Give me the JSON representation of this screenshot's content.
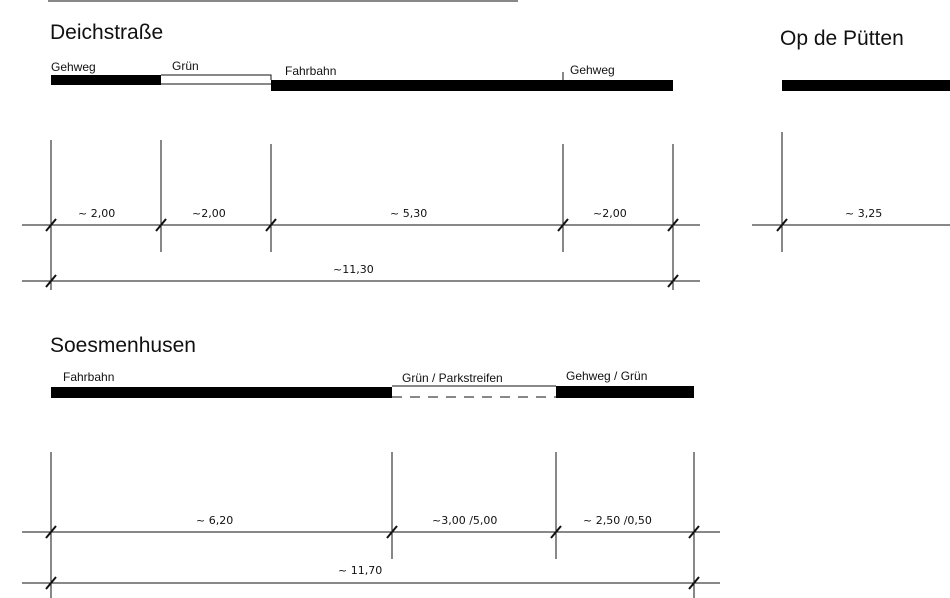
{
  "sections": {
    "deichstrasse": {
      "title": "Deichstraße",
      "labels": [
        "Gehweg",
        "Grün",
        "Fahrbahn",
        "Gehweg"
      ],
      "dims": [
        "~ 2,00",
        "~2,00",
        "~ 5,30",
        "~2,00"
      ],
      "total": "~11,30"
    },
    "op_de_puetten": {
      "title": "Op de Pütten",
      "dims": [
        "~ 3,25"
      ]
    },
    "soesmenhusen": {
      "title": "Soesmenhusen",
      "labels": [
        "Fahrbahn",
        "Grün / Parkstreifen",
        "Gehweg / Grün"
      ],
      "dims": [
        "~ 6,20",
        "~3,00 /5,00",
        "~ 2,50  /0,50"
      ],
      "total": "~  11,70"
    }
  }
}
